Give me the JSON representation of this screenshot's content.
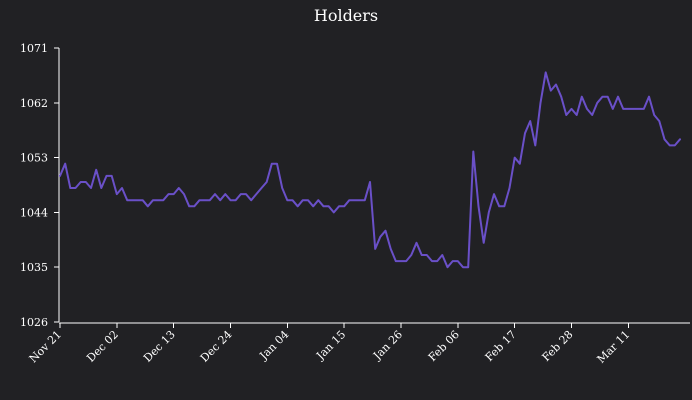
{
  "chart_data": {
    "type": "line",
    "title": "Holders",
    "xlabel": "",
    "ylabel": "",
    "ylim": [
      1026,
      1071
    ],
    "yticks": [
      1026,
      1035,
      1044,
      1053,
      1062,
      1071
    ],
    "grid": false,
    "line_color": "#6a50c8",
    "x_start": "Nov 21",
    "x_end": "Mar 22",
    "xticks": [
      {
        "label": "Nov 21",
        "day": 0
      },
      {
        "label": "Dec 02",
        "day": 11
      },
      {
        "label": "Dec 13",
        "day": 22
      },
      {
        "label": "Dec 24",
        "day": 33
      },
      {
        "label": "Jan 04",
        "day": 44
      },
      {
        "label": "Jan 15",
        "day": 55
      },
      {
        "label": "Jan 26",
        "day": 66
      },
      {
        "label": "Feb 06",
        "day": 77
      },
      {
        "label": "Feb 17",
        "day": 88
      },
      {
        "label": "Feb 28",
        "day": 99
      },
      {
        "label": "Mar 11",
        "day": 110
      }
    ],
    "series": [
      {
        "name": "",
        "values": [
          1050,
          1052,
          1048,
          1048,
          1049,
          1049,
          1048,
          1051,
          1048,
          1050,
          1050,
          1047,
          1048,
          1046,
          1046,
          1046,
          1046,
          1045,
          1046,
          1046,
          1046,
          1047,
          1047,
          1048,
          1047,
          1045,
          1045,
          1046,
          1046,
          1046,
          1047,
          1046,
          1047,
          1046,
          1046,
          1047,
          1047,
          1046,
          1047,
          1048,
          1049,
          1052,
          1052,
          1048,
          1046,
          1046,
          1045,
          1046,
          1046,
          1045,
          1046,
          1045,
          1045,
          1044,
          1045,
          1045,
          1046,
          1046,
          1046,
          1046,
          1049,
          1038,
          1040,
          1041,
          1038,
          1036,
          1036,
          1036,
          1037,
          1039,
          1037,
          1037,
          1036,
          1036,
          1037,
          1035,
          1036,
          1036,
          1035,
          1035,
          1054,
          1045,
          1039,
          1044,
          1047,
          1045,
          1045,
          1048,
          1053,
          1052,
          1057,
          1059,
          1055,
          1062,
          1067,
          1064,
          1065,
          1063,
          1060,
          1061,
          1060,
          1063,
          1061,
          1060,
          1062,
          1063,
          1063,
          1061,
          1063,
          1061,
          1061,
          1061,
          1061,
          1061,
          1063,
          1060,
          1059,
          1056,
          1055,
          1055,
          1056
        ]
      }
    ]
  }
}
